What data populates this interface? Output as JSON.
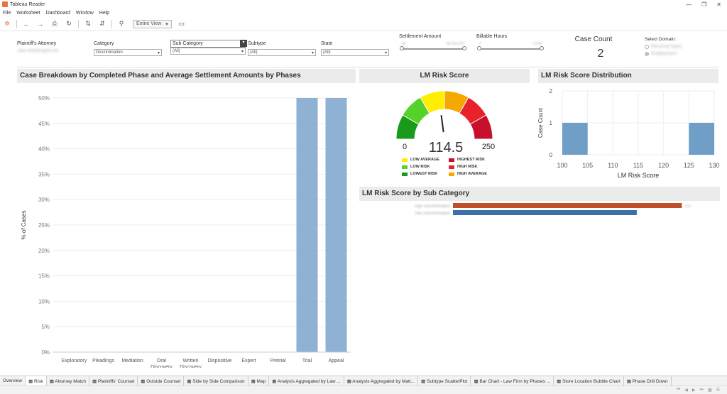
{
  "window": {
    "title": "Tableau Reader",
    "controls": [
      "—",
      "❐",
      "✕"
    ]
  },
  "menu": [
    "File",
    "Worksheet",
    "Dashboard",
    "Window",
    "Help"
  ],
  "toolbar": {
    "view_label": "Entire View"
  },
  "filters": {
    "attorney": {
      "label": "Plaintiff's Attorney",
      "value": "Jake Weinberger&Tell"
    },
    "category": {
      "label": "Category",
      "value": "Discrimination"
    },
    "subcategory": {
      "label": "Sub Category",
      "value": "(All)"
    },
    "subtype": {
      "label": "Subtype",
      "value": "(All)"
    },
    "state": {
      "label": "State",
      "value": "(All)"
    },
    "settlement": {
      "label": "Settlement Amount",
      "min": "$0",
      "max": "$6,000,000"
    },
    "billable": {
      "label": "Billable Hours",
      "min": "0",
      "max": "3,048"
    }
  },
  "case_count": {
    "label": "Case Count",
    "value": "2"
  },
  "domain": {
    "label": "Select Domain:",
    "options": [
      "Personal Injury",
      "Employment"
    ],
    "selected": 1
  },
  "panels": {
    "main_title": "Case Breakdown by Completed Phase and Average Settlement Amounts by Phases",
    "gauge_title": "LM Risk Score",
    "dist_title": "LM Risk Score Distribution",
    "subcat_title": "LM Risk Score by Sub Category"
  },
  "gauge": {
    "min_label": "0",
    "max_label": "250",
    "value_label": "114.5"
  },
  "legend": [
    {
      "label": "LOW AVERAGE",
      "color": "#ffee00"
    },
    {
      "label": "HIGHEST RISK",
      "color": "#c8102e"
    },
    {
      "label": "LOW RISK",
      "color": "#55d12a"
    },
    {
      "label": "HIGH RISK",
      "color": "#e8222a"
    },
    {
      "label": "LOWEST RISK",
      "color": "#1a9a1a"
    },
    {
      "label": "HIGH AVERAGE",
      "color": "#f5a800"
    }
  ],
  "chart_data": [
    {
      "type": "bar",
      "ylabel": "% of Cases",
      "ylim": [
        0,
        50
      ],
      "yticks": [
        "0%",
        "5%",
        "10%",
        "15%",
        "20%",
        "25%",
        "30%",
        "35%",
        "40%",
        "45%",
        "50%"
      ],
      "categories": [
        "Exploratory",
        "Pleadings",
        "Mediation",
        "Oral Discovery",
        "Written Discovery",
        "Dispositive",
        "Expert",
        "Pretrial",
        "Trial",
        "Appeal"
      ],
      "values": [
        0,
        0,
        0,
        0,
        0,
        0,
        0,
        0,
        50,
        50
      ],
      "bar_color": "#7aa3cc"
    },
    {
      "type": "bar",
      "xlabel": "LM Risk Score",
      "ylabel": "Case Count",
      "ylim": [
        0,
        2
      ],
      "yticks": [
        "0",
        "1",
        "2"
      ],
      "xticks": [
        "100",
        "105",
        "110",
        "115",
        "120",
        "125",
        "130"
      ],
      "bins": [
        {
          "start": 100,
          "end": 105,
          "count": 1
        },
        {
          "start": 125,
          "end": 130,
          "count": 1
        }
      ],
      "bar_color": "#6f9ec7"
    },
    {
      "type": "bar",
      "orientation": "horizontal",
      "categories": [
        "Age Discrimination",
        "Sex Discrimination"
      ],
      "values": [
        127,
        102
      ],
      "colors": [
        "#c0502a",
        "#3f6fa8"
      ]
    }
  ],
  "tabs": [
    "Overview",
    "Risk",
    "Attorney Match",
    "Plaintiffs' Counsel",
    "Outside Counsel",
    "Side by Side Comparison",
    "Map",
    "Analysis Aggregated by Law ...",
    "Analysis Aggregated by Matt...",
    "Subtype ScatterPlot",
    "Bar Chart - Law Firm by Phases ...",
    "Store Location Bubble Chart",
    "Phase Drill Down"
  ],
  "active_tab": 1
}
